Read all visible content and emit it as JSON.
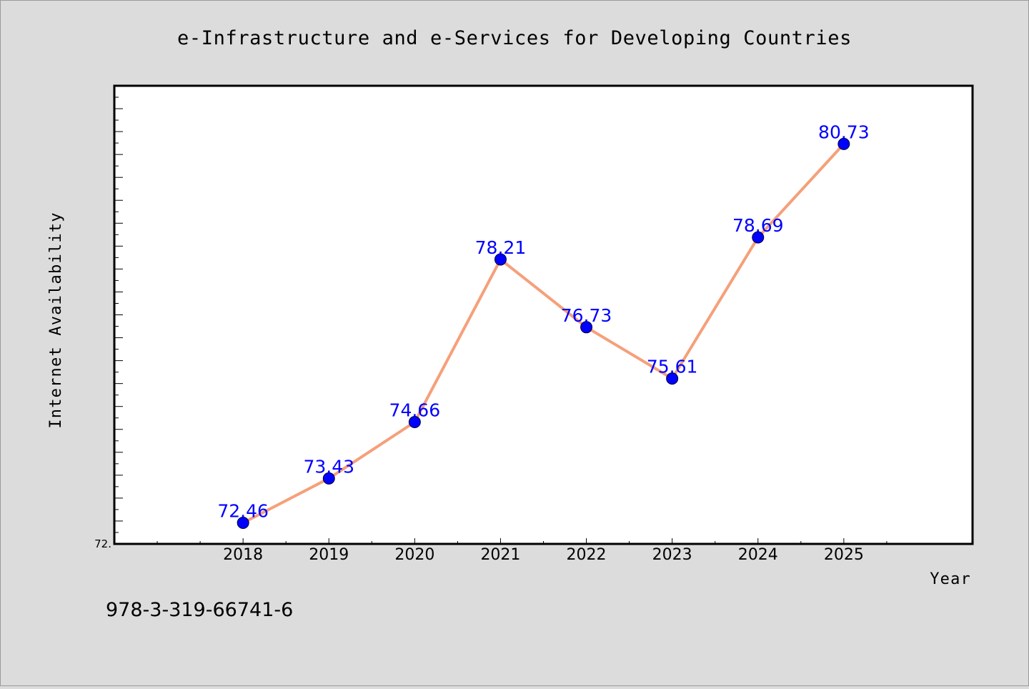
{
  "chart_data": {
    "type": "line",
    "title": "e-Infrastructure and e-Services for Developing Countries",
    "xlabel": "Year",
    "ylabel": "Internet Availability",
    "x": [
      2018,
      2019,
      2020,
      2021,
      2022,
      2023,
      2024,
      2025
    ],
    "x_tick_labels": [
      "2018",
      "2019",
      "2020",
      "2021",
      "2022",
      "2023",
      "2024",
      "2025"
    ],
    "xlim": [
      2016.5,
      2026.5
    ],
    "ylim": [
      72.0,
      82.0
    ],
    "y_tick_labels": [
      {
        "value": 72.0,
        "label": "72."
      }
    ],
    "series": [
      {
        "values": [
          72.46,
          73.43,
          74.66,
          78.21,
          76.73,
          75.61,
          78.69,
          80.73
        ],
        "data_labels": [
          "72.46",
          "73.43",
          "74.66",
          "78.21",
          "76.73",
          "75.61",
          "78.69",
          "80.73"
        ],
        "line_color": "#f5a07a",
        "marker_color": "#0000ff"
      }
    ],
    "grid": false,
    "legend": "none",
    "annotation": "978-3-319-66741-6",
    "background_color": "#dcdcdc",
    "plot_background_color": "#ffffff"
  }
}
